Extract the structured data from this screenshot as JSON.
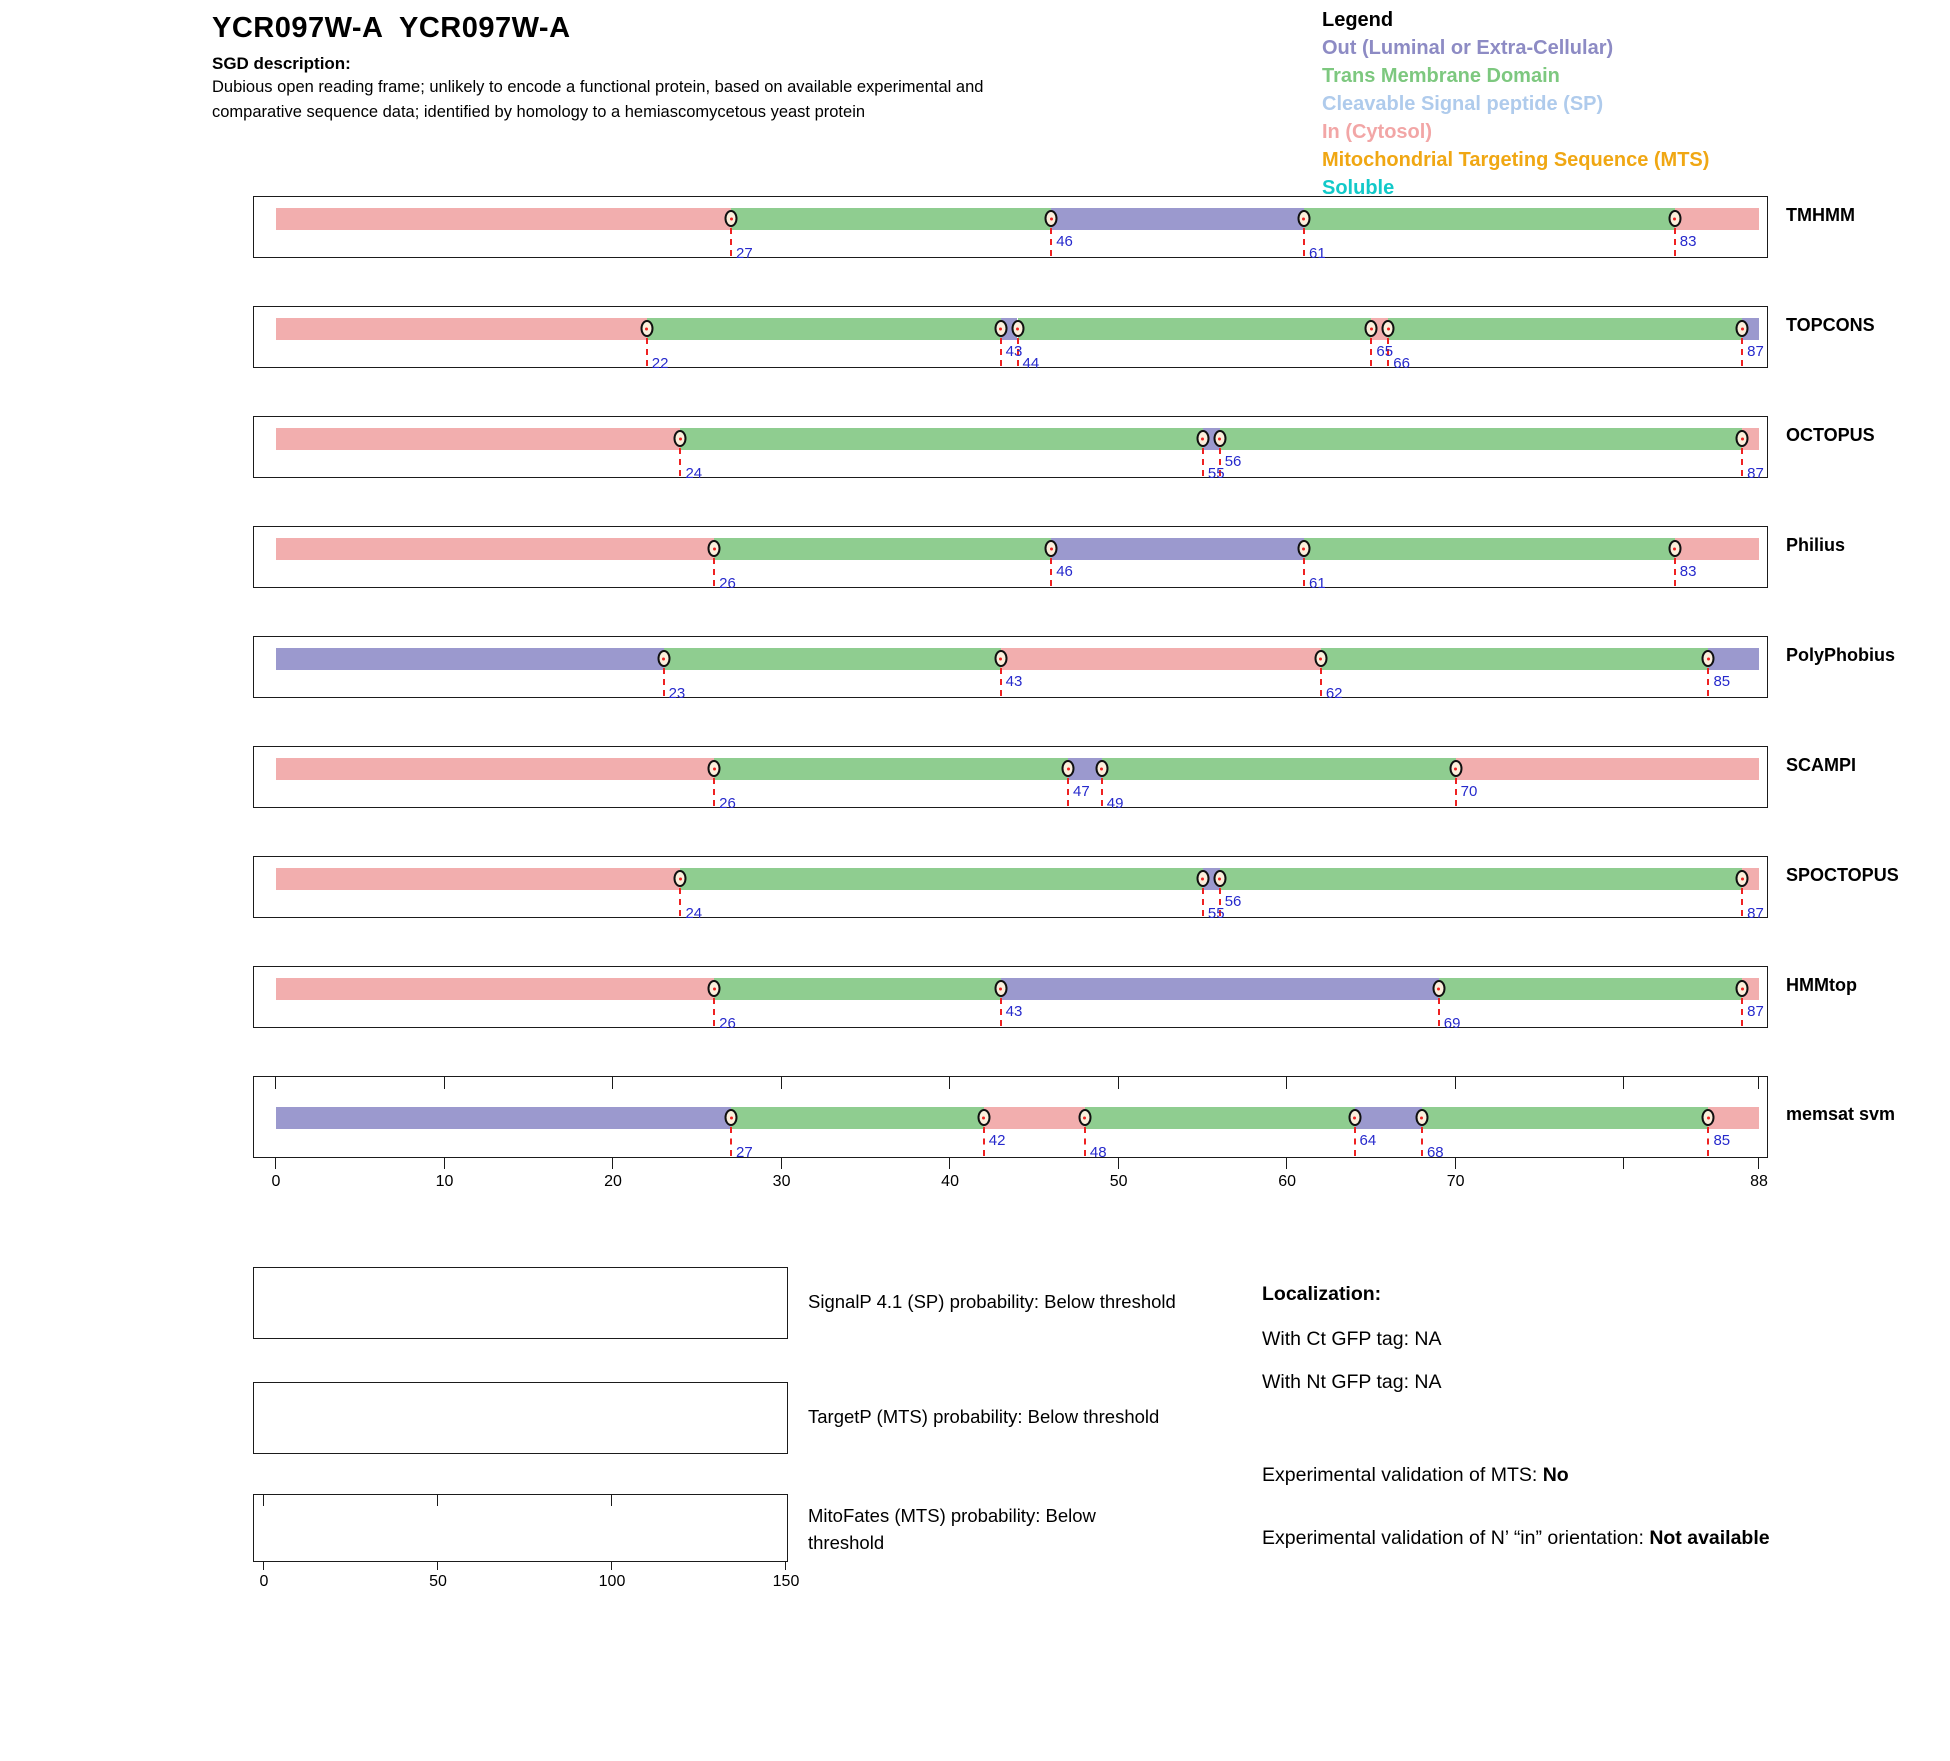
{
  "header": {
    "title": "YCR097W-A  YCR097W-A",
    "sgd_label": "SGD description:",
    "sgd_description": "Dubious open reading frame; unlikely to encode a functional protein, based on available experimental and comparative sequence data; identified by homology to a hemiascomycetous yeast protein"
  },
  "legend": {
    "title": "Legend",
    "items": [
      {
        "key": "out",
        "label": "Out (Luminal or Extra-Cellular)",
        "color": "#8D8BC4"
      },
      {
        "key": "tm",
        "label": "Trans Membrane Domain",
        "color": "#7DC87F"
      },
      {
        "key": "sp",
        "label": "Cleavable Signal peptide (SP)",
        "color": "#AFCBEC"
      },
      {
        "key": "in",
        "label": "In (Cytosol)",
        "color": "#F2A6A6"
      },
      {
        "key": "mts",
        "label": "Mitochondrial Targeting Sequence (MTS)",
        "color": "#F0A713"
      },
      {
        "key": "soluble",
        "label": "Soluble",
        "color": "#12C9C9"
      }
    ]
  },
  "region_colors": {
    "in": "#F2AEAE",
    "tm": "#8FCD90",
    "out": "#9B99CE",
    "sp": "#AFCBEC",
    "mts": "#F0A713",
    "soluble": "#12C9C9"
  },
  "marker_style": {
    "line_color": "#EE2222",
    "label_color": "#2629CC",
    "fill": "#FBEFDC"
  },
  "chart_data": [
    {
      "type": "bar",
      "subtype": "membrane-topology-tracks",
      "xlim": [
        0,
        88
      ],
      "x_ticks": [
        0,
        10,
        20,
        30,
        40,
        50,
        60,
        70,
        88
      ],
      "tick_positions": [
        0,
        10,
        20,
        30,
        40,
        50,
        60,
        70,
        80,
        88
      ],
      "tracks": [
        {
          "name": "TMHMM",
          "segments": [
            {
              "region": "in",
              "start": 0,
              "end": 27
            },
            {
              "region": "tm",
              "start": 27,
              "end": 46
            },
            {
              "region": "out",
              "start": 46,
              "end": 61
            },
            {
              "region": "tm",
              "start": 61,
              "end": 83
            },
            {
              "region": "in",
              "start": 83,
              "end": 88
            }
          ],
          "boundaries": [
            {
              "pos": 27,
              "label_row": "low"
            },
            {
              "pos": 46,
              "label_row": "high"
            },
            {
              "pos": 61,
              "label_row": "low"
            },
            {
              "pos": 83,
              "label_row": "high"
            }
          ]
        },
        {
          "name": "TOPCONS",
          "segments": [
            {
              "region": "in",
              "start": 0,
              "end": 22
            },
            {
              "region": "tm",
              "start": 22,
              "end": 43
            },
            {
              "region": "out",
              "start": 43,
              "end": 44
            },
            {
              "region": "tm",
              "start": 44,
              "end": 65
            },
            {
              "region": "in",
              "start": 65,
              "end": 66
            },
            {
              "region": "tm",
              "start": 66,
              "end": 87
            },
            {
              "region": "out",
              "start": 87,
              "end": 88
            }
          ],
          "boundaries": [
            {
              "pos": 22,
              "label_row": "low"
            },
            {
              "pos": 43,
              "label_row": "high"
            },
            {
              "pos": 44,
              "label_row": "low"
            },
            {
              "pos": 65,
              "label_row": "high"
            },
            {
              "pos": 66,
              "label_row": "low"
            },
            {
              "pos": 87,
              "label_row": "high"
            }
          ]
        },
        {
          "name": "OCTOPUS",
          "segments": [
            {
              "region": "in",
              "start": 0,
              "end": 24
            },
            {
              "region": "tm",
              "start": 24,
              "end": 55
            },
            {
              "region": "out",
              "start": 55,
              "end": 56
            },
            {
              "region": "tm",
              "start": 56,
              "end": 87
            },
            {
              "region": "in",
              "start": 87,
              "end": 88
            }
          ],
          "boundaries": [
            {
              "pos": 24,
              "label_row": "low"
            },
            {
              "pos": 55,
              "label_row": "low"
            },
            {
              "pos": 56,
              "label_row": "high"
            },
            {
              "pos": 87,
              "label_row": "low"
            }
          ]
        },
        {
          "name": "Philius",
          "segments": [
            {
              "region": "in",
              "start": 0,
              "end": 26
            },
            {
              "region": "tm",
              "start": 26,
              "end": 46
            },
            {
              "region": "out",
              "start": 46,
              "end": 61
            },
            {
              "region": "tm",
              "start": 61,
              "end": 83
            },
            {
              "region": "in",
              "start": 83,
              "end": 88
            }
          ],
          "boundaries": [
            {
              "pos": 26,
              "label_row": "low"
            },
            {
              "pos": 46,
              "label_row": "high"
            },
            {
              "pos": 61,
              "label_row": "low"
            },
            {
              "pos": 83,
              "label_row": "high"
            }
          ]
        },
        {
          "name": "PolyPhobius",
          "segments": [
            {
              "region": "out",
              "start": 0,
              "end": 23
            },
            {
              "region": "tm",
              "start": 23,
              "end": 43
            },
            {
              "region": "in",
              "start": 43,
              "end": 62
            },
            {
              "region": "tm",
              "start": 62,
              "end": 85
            },
            {
              "region": "out",
              "start": 85,
              "end": 88
            }
          ],
          "boundaries": [
            {
              "pos": 23,
              "label_row": "low"
            },
            {
              "pos": 43,
              "label_row": "high"
            },
            {
              "pos": 62,
              "label_row": "low"
            },
            {
              "pos": 85,
              "label_row": "high"
            }
          ]
        },
        {
          "name": "SCAMPI",
          "segments": [
            {
              "region": "in",
              "start": 0,
              "end": 26
            },
            {
              "region": "tm",
              "start": 26,
              "end": 47
            },
            {
              "region": "out",
              "start": 47,
              "end": 49
            },
            {
              "region": "tm",
              "start": 49,
              "end": 70
            },
            {
              "region": "in",
              "start": 70,
              "end": 88
            }
          ],
          "boundaries": [
            {
              "pos": 26,
              "label_row": "low"
            },
            {
              "pos": 47,
              "label_row": "high"
            },
            {
              "pos": 49,
              "label_row": "low"
            },
            {
              "pos": 70,
              "label_row": "high"
            }
          ]
        },
        {
          "name": "SPOCTOPUS",
          "segments": [
            {
              "region": "in",
              "start": 0,
              "end": 24
            },
            {
              "region": "tm",
              "start": 24,
              "end": 55
            },
            {
              "region": "out",
              "start": 55,
              "end": 56
            },
            {
              "region": "tm",
              "start": 56,
              "end": 87
            },
            {
              "region": "in",
              "start": 87,
              "end": 88
            }
          ],
          "boundaries": [
            {
              "pos": 24,
              "label_row": "low"
            },
            {
              "pos": 55,
              "label_row": "low"
            },
            {
              "pos": 56,
              "label_row": "high"
            },
            {
              "pos": 87,
              "label_row": "low"
            }
          ]
        },
        {
          "name": "HMMtop",
          "segments": [
            {
              "region": "in",
              "start": 0,
              "end": 26
            },
            {
              "region": "tm",
              "start": 26,
              "end": 43
            },
            {
              "region": "out",
              "start": 43,
              "end": 69
            },
            {
              "region": "tm",
              "start": 69,
              "end": 87
            },
            {
              "region": "in",
              "start": 87,
              "end": 88
            }
          ],
          "boundaries": [
            {
              "pos": 26,
              "label_row": "low"
            },
            {
              "pos": 43,
              "label_row": "high"
            },
            {
              "pos": 69,
              "label_row": "low"
            },
            {
              "pos": 87,
              "label_row": "high"
            }
          ]
        },
        {
          "name": "memsat svm",
          "has_axis": true,
          "segments": [
            {
              "region": "out",
              "start": 0,
              "end": 27
            },
            {
              "region": "tm",
              "start": 27,
              "end": 42
            },
            {
              "region": "in",
              "start": 42,
              "end": 48
            },
            {
              "region": "tm",
              "start": 48,
              "end": 64
            },
            {
              "region": "out",
              "start": 64,
              "end": 68
            },
            {
              "region": "tm",
              "start": 68,
              "end": 85
            },
            {
              "region": "in",
              "start": 85,
              "end": 88
            }
          ],
          "boundaries": [
            {
              "pos": 27,
              "label_row": "low"
            },
            {
              "pos": 42,
              "label_row": "high"
            },
            {
              "pos": 48,
              "label_row": "low"
            },
            {
              "pos": 64,
              "label_row": "high"
            },
            {
              "pos": 68,
              "label_row": "low"
            },
            {
              "pos": 85,
              "label_row": "high"
            }
          ]
        }
      ]
    },
    {
      "type": "line",
      "subtype": "probability-panels",
      "xlim": [
        0,
        150
      ],
      "x_ticks": [
        0,
        50,
        100,
        150
      ],
      "panels": [
        {
          "label": "SignalP 4.1 (SP) probability: Below threshold",
          "values": []
        },
        {
          "label": "TargetP (MTS) probability: Below threshold",
          "values": []
        },
        {
          "label": "MitoFates (MTS) probability: Below threshold",
          "values": []
        }
      ]
    }
  ],
  "info_panel": {
    "localization_title": "Localization:",
    "ct_gfp": "With Ct GFP tag: NA",
    "nt_gfp": "With Nt GFP tag: NA",
    "mts_validation_label": "Experimental validation of MTS:",
    "mts_validation_value": "No",
    "orientation_label": "Experimental validation of N’ “in” orientation:",
    "orientation_value": "Not available"
  }
}
